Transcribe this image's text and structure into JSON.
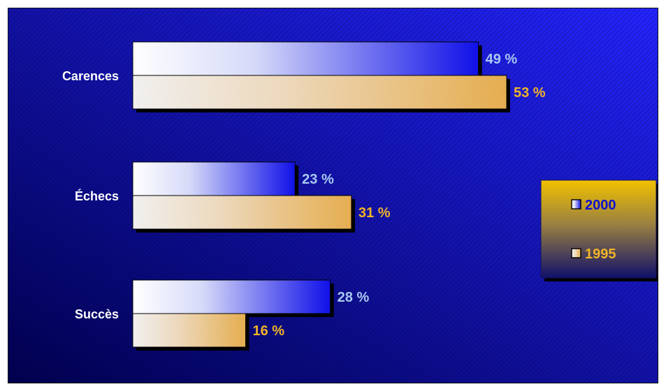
{
  "chart_data": {
    "type": "bar",
    "orientation": "horizontal",
    "categories": [
      "Carences",
      "Échecs",
      "Succès"
    ],
    "series": [
      {
        "name": "2000",
        "values": [
          49,
          23,
          28
        ],
        "labels": [
          "49 %",
          "23 %",
          "28 %"
        ]
      },
      {
        "name": "1995",
        "values": [
          53,
          31,
          16
        ],
        "labels": [
          "53 %",
          "31 %",
          "16 %"
        ]
      }
    ],
    "xlim": [
      0,
      53
    ],
    "grid": false,
    "legend_position": "right",
    "legend": [
      "2000",
      "1995"
    ]
  },
  "colors": {
    "background_dark": "#000050",
    "background_light": "#2424ff",
    "series_2000_start": "#ffffff",
    "series_2000_end": "#1010e8",
    "series_1995_start": "#f4f4f4",
    "series_1995_end": "#e8b050",
    "label_2000": "#a8c8f0",
    "label_1995": "#f0b428",
    "category_label": "#ffffff",
    "legend_top": "#f2c200",
    "legend_bottom": "#10106a"
  }
}
